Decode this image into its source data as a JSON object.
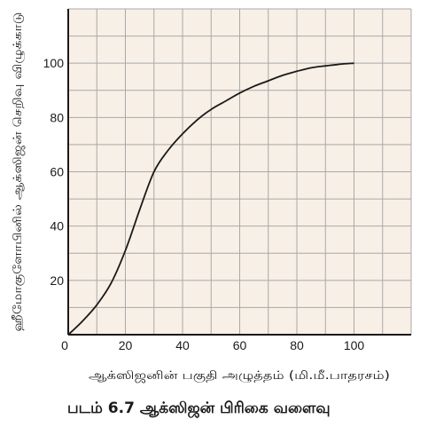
{
  "chart_data": {
    "type": "line",
    "xlabel": "ஆக்ஸிஜனின் பகுதி அழுத்தம் (மி.மீ.பாதரசம்)",
    "ylabel": "ஹீமோகுளோபினில் ஆக்ஸிஜன் செறிவு விழுக்காடு",
    "xlim": [
      0,
      120
    ],
    "ylim": [
      0,
      120
    ],
    "x_ticks": [
      0,
      20,
      40,
      60,
      80,
      100
    ],
    "y_ticks": [
      20,
      40,
      60,
      80,
      100
    ],
    "grid": true,
    "background_color": "#f8efe6",
    "grid_color": "#a9a9a9",
    "line_color": "#1a1a1a",
    "series": [
      {
        "x": [
          0,
          5,
          10,
          15,
          20,
          25,
          30,
          35,
          40,
          45,
          50,
          55,
          60,
          65,
          70,
          75,
          80,
          85,
          90,
          95,
          100
        ],
        "values": [
          0,
          5,
          11,
          19,
          31,
          46,
          60,
          68,
          74,
          79,
          83,
          86,
          89,
          91.5,
          93.5,
          95.5,
          97,
          98.3,
          99,
          99.6,
          100
        ]
      }
    ]
  },
  "caption": "படம் 6.7 ஆக்ஸிஜன் பிரிகை வளைவு"
}
